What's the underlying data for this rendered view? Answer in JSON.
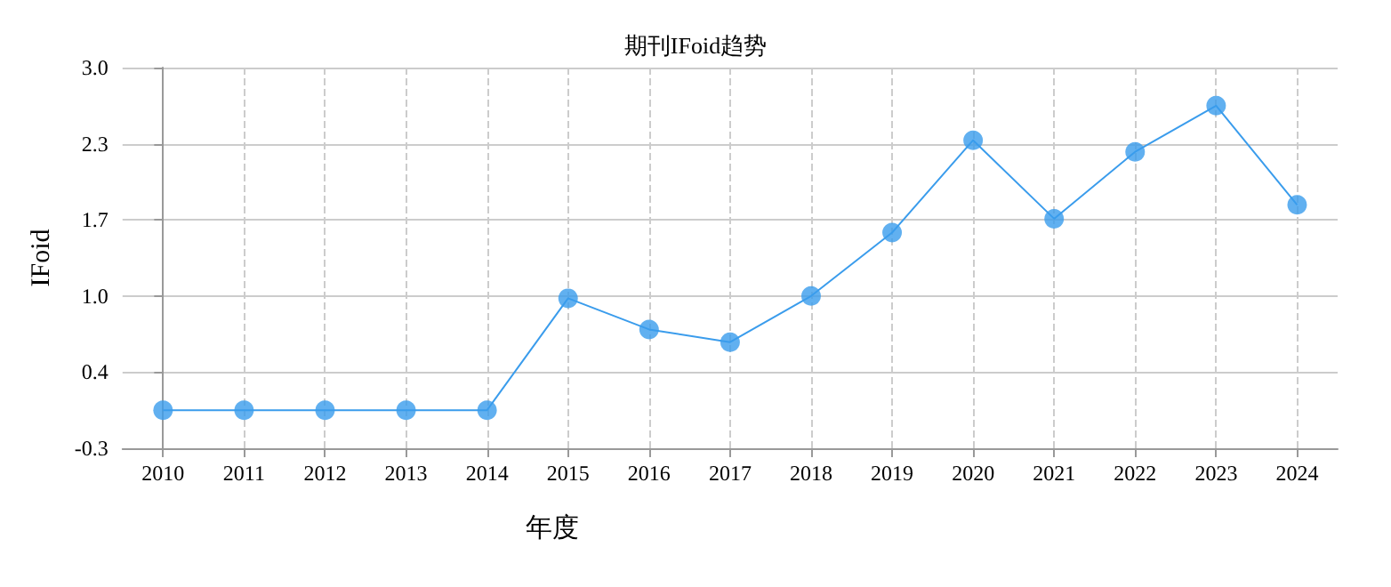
{
  "chart_data": {
    "type": "line",
    "title": "期刊IFoid趋势",
    "xlabel": "年度",
    "ylabel": "IFoid",
    "categories": [
      "2010",
      "2011",
      "2012",
      "2013",
      "2014",
      "2015",
      "2016",
      "2017",
      "2018",
      "2019",
      "2020",
      "2021",
      "2022",
      "2023",
      "2024"
    ],
    "series": [
      {
        "color": "#3a9cec",
        "values": [
          0.03,
          0.03,
          0.03,
          0.03,
          0.03,
          1.0,
          0.73,
          0.62,
          1.02,
          1.57,
          2.37,
          1.69,
          2.27,
          2.67,
          1.81
        ]
      }
    ],
    "ylim": [
      -0.3,
      3.0
    ],
    "yticks": [
      -0.3,
      {
        "value": 0.36,
        "label": "0.4"
      },
      {
        "value": 1.02,
        "label": "1.0"
      },
      {
        "value": 1.68,
        "label": "1.7"
      },
      {
        "value": 2.34,
        "label": "2.3"
      },
      {
        "value": 3.0,
        "label": "3.0"
      }
    ],
    "grid": true,
    "marker": "circle",
    "line_style": "solid"
  }
}
